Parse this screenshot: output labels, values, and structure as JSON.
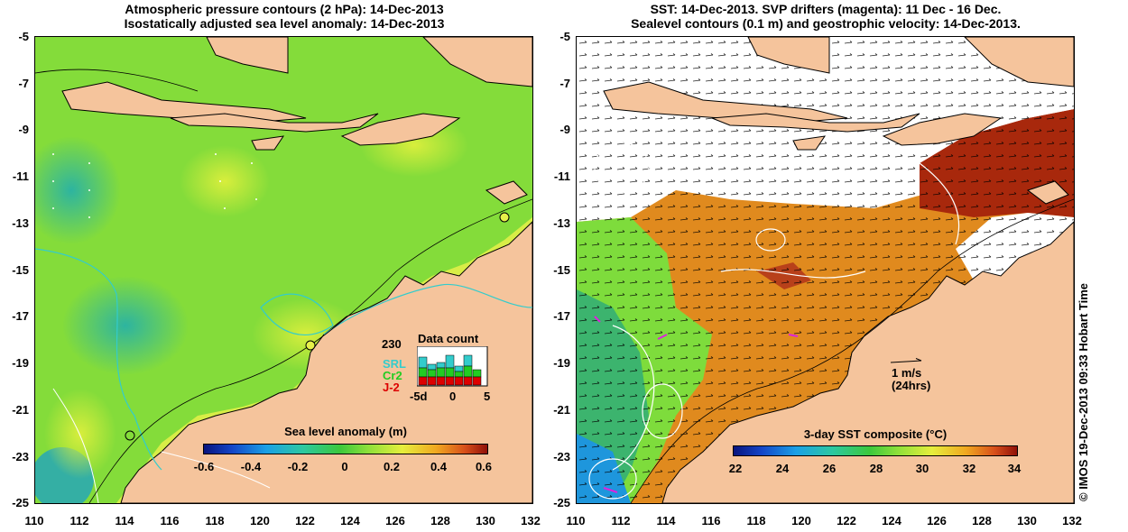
{
  "left_panel": {
    "title_line1": "Atmospheric pressure contours (2 hPa): 14-Dec-2013",
    "title_line2": "Isostatically adjusted sea level anomaly: 14-Dec-2013",
    "colorbar": {
      "label": "Sea level anomaly (m)",
      "ticks": [
        "-0.6",
        "-0.4",
        "-0.2",
        "0",
        "0.2",
        "0.4",
        "0.6"
      ]
    },
    "inset": {
      "max_label": "230",
      "title": "Data count",
      "series": [
        {
          "name": "SRL",
          "color": "#33cccc"
        },
        {
          "name": "Cr2",
          "color": "#22cc22"
        },
        {
          "name": "J-2",
          "color": "#dd0000"
        }
      ],
      "x_ticks": [
        "-5d",
        "0",
        "5"
      ]
    }
  },
  "right_panel": {
    "title_line1": "SST: 14-Dec-2013. SVP drifters (magenta): 11 Dec - 16 Dec.",
    "title_line2": "Sealevel contours (0.1 m) and geostrophic velocity: 14-Dec-2013.",
    "colorbar": {
      "label": "3-day SST composite (°C)",
      "ticks": [
        "22",
        "24",
        "26",
        "28",
        "30",
        "32",
        "34"
      ]
    },
    "velocity_scale": {
      "label": "1 m/s",
      "sublabel": "(24hrs)"
    }
  },
  "axes": {
    "y_ticks": [
      "-5",
      "-7",
      "-9",
      "-11",
      "-13",
      "-15",
      "-17",
      "-19",
      "-21",
      "-23",
      "-25"
    ],
    "x_ticks": [
      "110",
      "112",
      "114",
      "116",
      "118",
      "120",
      "122",
      "124",
      "126",
      "128",
      "130",
      "132"
    ]
  },
  "credit": "© IMOS 19-Dec-2013 09:33 Hobart Time",
  "colors": {
    "land": "#f5c49c",
    "ocean_green": "#7edc3c",
    "sst_orange": "#e08a1e",
    "sst_red": "#a8280c",
    "coast_line": "#000000",
    "depth_contour": "#33cccc"
  }
}
